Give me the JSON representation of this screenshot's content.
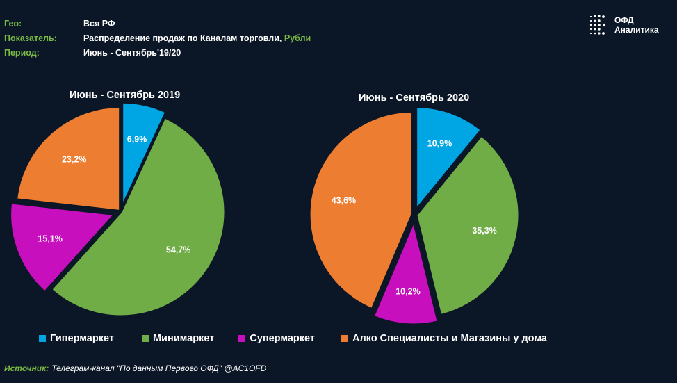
{
  "meta": {
    "geo_label": "Гео:",
    "geo_value": "Вся РФ",
    "indicator_label": "Показатель:",
    "indicator_value": "Распределение продаж по Каналам торговли,",
    "indicator_unit": "Рубли",
    "period_label": "Период:",
    "period_value": "Июнь - Сентябрь'19/20"
  },
  "logo": {
    "line1": "ОФД",
    "line2": "Аналитика"
  },
  "colors": {
    "background": "#0b1627",
    "accent": "#79b842",
    "hypermarket": "#00a6e3",
    "minimarket": "#70ad47",
    "supermarket": "#c80fbe",
    "alco": "#ed7d31"
  },
  "chart_data": [
    {
      "type": "pie",
      "title": "Июнь - Сентябрь 2019",
      "slices": [
        {
          "name": "Гипермаркет",
          "value": 6.9,
          "label": "6,9%"
        },
        {
          "name": "Минимаркет",
          "value": 54.7,
          "label": "54,7%"
        },
        {
          "name": "Супермаркет",
          "value": 15.1,
          "label": "15,1%"
        },
        {
          "name": "Алко Специалисты и Магазины у дома",
          "value": 23.2,
          "label": "23,2%"
        }
      ],
      "legend_position": "bottom"
    },
    {
      "type": "pie",
      "title": "Июнь - Сентябрь 2020",
      "slices": [
        {
          "name": "Гипермаркет",
          "value": 10.9,
          "label": "10,9%"
        },
        {
          "name": "Минимаркет",
          "value": 35.3,
          "label": "35,3%"
        },
        {
          "name": "Супермаркет",
          "value": 10.2,
          "label": "10,2%"
        },
        {
          "name": "Алко Специалисты и Магазины у дома",
          "value": 43.6,
          "label": "43,6%"
        }
      ],
      "legend_position": "bottom"
    }
  ],
  "legend": [
    {
      "label": "Гипермаркет",
      "color": "#00a6e3"
    },
    {
      "label": "Минимаркет",
      "color": "#70ad47"
    },
    {
      "label": "Супермаркет",
      "color": "#c80fbe"
    },
    {
      "label": "Алко Специалисты и Магазины у дома",
      "color": "#ed7d31"
    }
  ],
  "source": {
    "label": "Источник:",
    "text": "Телеграм-канал \"По данным Первого ОФД\" @AC1OFD"
  }
}
